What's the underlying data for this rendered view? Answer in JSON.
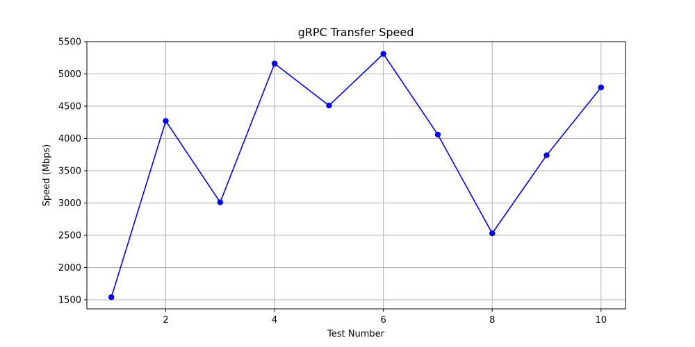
{
  "chart_data": {
    "type": "line",
    "title": "gRPC Transfer Speed",
    "xlabel": "Test Number",
    "ylabel": "Speed (Mbps)",
    "x": [
      1,
      2,
      3,
      4,
      5,
      6,
      7,
      8,
      9,
      10
    ],
    "series": [
      {
        "values": [
          1540,
          4270,
          3010,
          5160,
          4510,
          5310,
          4060,
          2530,
          3740,
          4790
        ],
        "color": "#0000ff",
        "marker": "circle"
      }
    ],
    "xlim": [
      0.55,
      10.45
    ],
    "ylim": [
      1360,
      5500
    ],
    "xticks": [
      2,
      4,
      6,
      8,
      10
    ],
    "yticks": [
      1500,
      2000,
      2500,
      3000,
      3500,
      4000,
      4500,
      5000,
      5500
    ],
    "grid": true
  }
}
